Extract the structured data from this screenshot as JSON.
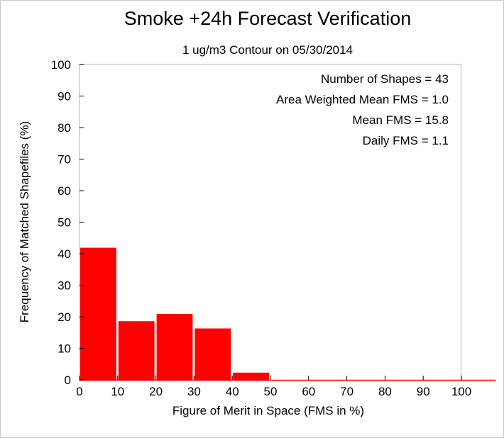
{
  "chart_data": {
    "type": "bar",
    "title": "Smoke +24h Forecast Verification",
    "subtitle": "1 ug/m3 Contour on 05/30/2014",
    "xlabel": "Figure of Merit in Space (FMS in %)",
    "ylabel": "Frequency of Matched Shapefiles (%)",
    "xlim": [
      0,
      100
    ],
    "ylim": [
      0,
      100
    ],
    "xticks": [
      "0",
      "10",
      "20",
      "30",
      "40",
      "50",
      "60",
      "70",
      "80",
      "90",
      "100"
    ],
    "yticks": [
      "0",
      "10",
      "20",
      "30",
      "40",
      "50",
      "60",
      "70",
      "80",
      "90",
      "100"
    ],
    "bins": [
      {
        "start": 0,
        "end": 10,
        "value": 41.9
      },
      {
        "start": 10,
        "end": 20,
        "value": 18.6
      },
      {
        "start": 20,
        "end": 30,
        "value": 20.9
      },
      {
        "start": 30,
        "end": 40,
        "value": 16.3
      },
      {
        "start": 40,
        "end": 50,
        "value": 2.3
      },
      {
        "start": 50,
        "end": 60,
        "value": 0
      },
      {
        "start": 60,
        "end": 70,
        "value": 0
      },
      {
        "start": 70,
        "end": 80,
        "value": 0
      },
      {
        "start": 80,
        "end": 90,
        "value": 0
      },
      {
        "start": 90,
        "end": 100,
        "value": 0
      }
    ],
    "annotations": [
      "Number of Shapes = 43",
      "Area Weighted Mean FMS = 1.0",
      "Mean FMS = 15.8",
      "Daily FMS = 1.1"
    ],
    "bar_color": "#ff0000",
    "grid": false
  }
}
